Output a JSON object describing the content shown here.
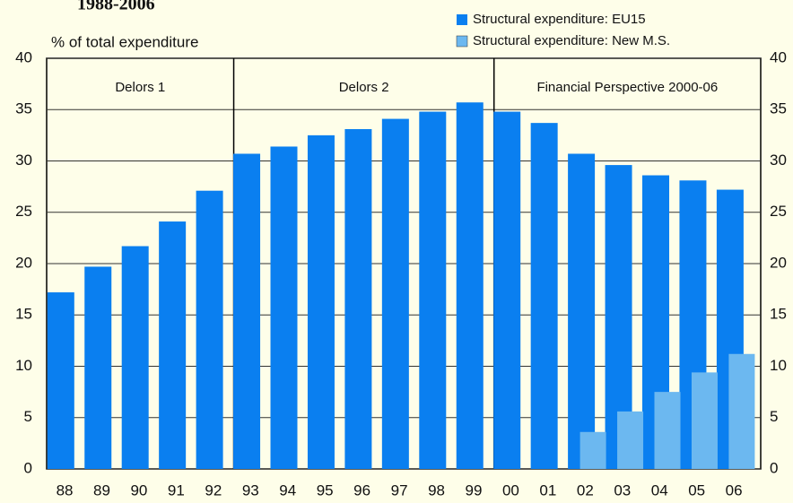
{
  "chart_data": {
    "type": "bar",
    "title": "1988-2006",
    "ylabel": "% of total expenditure",
    "categories": [
      "88",
      "89",
      "90",
      "91",
      "92",
      "93",
      "94",
      "95",
      "96",
      "97",
      "98",
      "99",
      "00",
      "01",
      "02",
      "03",
      "04",
      "05",
      "06"
    ],
    "series": [
      {
        "name": "Structural expenditure: EU15",
        "color": "#0a7ff0",
        "values": [
          17.2,
          19.7,
          21.7,
          24.1,
          27.1,
          30.7,
          31.4,
          32.5,
          33.1,
          34.1,
          34.8,
          35.7,
          34.8,
          33.7,
          30.7,
          29.6,
          28.6,
          28.1,
          27.2
        ]
      },
      {
        "name": "Structural expenditure: New M.S.",
        "color": "#6cb8f0",
        "values": [
          null,
          null,
          null,
          null,
          null,
          null,
          null,
          null,
          null,
          null,
          null,
          null,
          null,
          null,
          3.6,
          5.6,
          7.5,
          9.4,
          11.2
        ]
      }
    ],
    "periods": [
      {
        "label": "Delors 1",
        "start": "88",
        "end": "92"
      },
      {
        "label": "Delors 2",
        "start": "93",
        "end": "99"
      },
      {
        "label": "Financial Perspective 2000-06",
        "start": "00",
        "end": "06"
      }
    ],
    "ylim": [
      0,
      40
    ],
    "yticks": [
      0,
      5,
      10,
      15,
      20,
      25,
      30,
      35,
      40
    ],
    "grid": true,
    "legend": "top-right"
  }
}
